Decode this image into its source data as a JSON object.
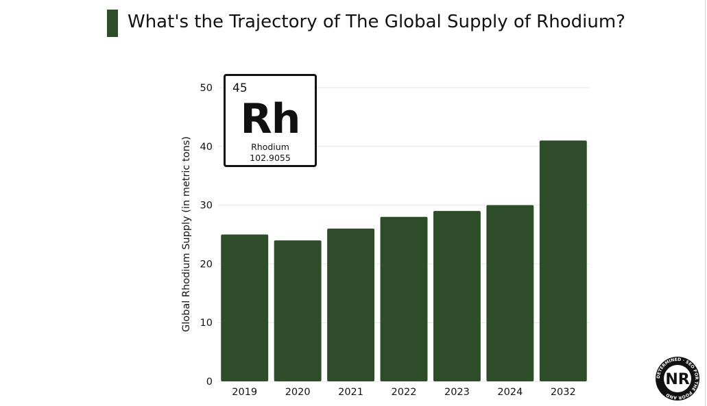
{
  "header": {
    "title": "What's the Trajectory of The Global Supply of Rhodium?"
  },
  "element_card": {
    "atomic_number": "45",
    "symbol": "Rh",
    "name": "Rhodium",
    "atomic_mass": "102.9055"
  },
  "logo": {
    "letters": "NR",
    "ring_text": "DETERMINED · SEO FOR THE POOR AND"
  },
  "colors": {
    "bar": "#2d4c28",
    "accent": "#2d4c28",
    "grid": "#e6e6e6"
  },
  "chart_data": {
    "type": "bar",
    "title": "What's the Trajectory of The Global Supply of Rhodium?",
    "xlabel": "",
    "ylabel": "Global Rhodium Supply (in metric tons)",
    "categories": [
      "2019",
      "2020",
      "2021",
      "2022",
      "2023",
      "2024",
      "2032"
    ],
    "values": [
      25,
      24,
      26,
      28,
      29,
      30,
      41
    ],
    "ylim": [
      0,
      50
    ],
    "yticks": [
      0,
      10,
      20,
      30,
      40,
      50
    ],
    "grid": true,
    "legend": "none"
  }
}
